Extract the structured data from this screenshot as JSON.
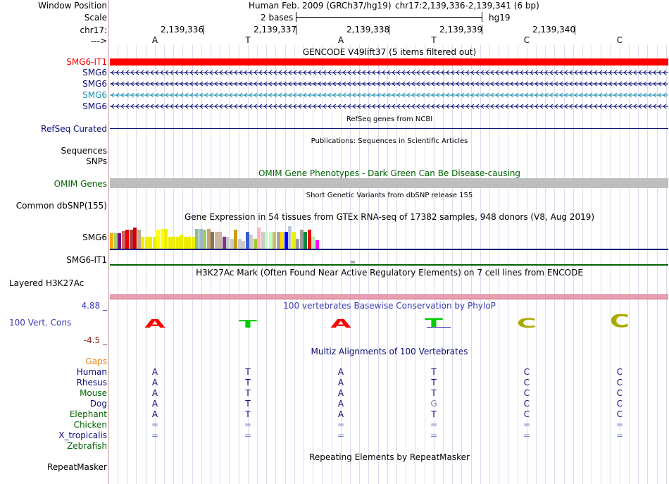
{
  "header": {
    "window_position_label": "Window Position",
    "scale_label": "Scale",
    "chrom_label": "chr17:",
    "strand_label": "--->",
    "assembly": "Human Feb. 2009 (GRCh37/hg19)",
    "position": "chr17:2,139,336-2,139,341 (6 bp)",
    "scale_bases": "2 bases",
    "scale_db": "hg19",
    "ruler_positions": [
      "2,139,336",
      "2,139,337",
      "2,139,338",
      "2,139,339",
      "2,139,340"
    ],
    "bases": [
      "A",
      "T",
      "A",
      "T",
      "C",
      "C"
    ]
  },
  "tracks": {
    "gencode": {
      "title": "GENCODE V49lift37 (5 items filtered out)",
      "items": [
        {
          "name": "SMG6-IT1",
          "color": "#ff0000",
          "type": "bar"
        },
        {
          "name": "SMG6",
          "color": "#0c0c78",
          "type": "arrow"
        },
        {
          "name": "SMG6",
          "color": "#0c0c78",
          "type": "arrow"
        },
        {
          "name": "SMG6",
          "color": "#1a8fb0",
          "type": "arrow"
        },
        {
          "name": "SMG6",
          "color": "#0c0c78",
          "type": "arrow"
        }
      ]
    },
    "refseq": {
      "title": "RefSeq genes from NCBI",
      "label": "RefSeq Curated",
      "color": "#0c0c78"
    },
    "publications": {
      "title": "Publications: Sequences in Scientific Articles",
      "label": "Sequences"
    },
    "snps_label": "SNPs",
    "omim": {
      "title": "OMIM Gene Phenotypes - Dark Green Can Be Disease-causing",
      "label": "OMIM Genes",
      "color": "#006400"
    },
    "dbsnp": {
      "title": "Short Genetic Variants from dbSNP release 155",
      "label": "Common dbSNP(155)"
    },
    "gtex": {
      "title": "Gene Expression in 54 tissues from GTEx RNA-seq of 17382 samples, 948 donors (V8, Aug 2019)",
      "gene1": "SMG6",
      "gene2": "SMG6-IT1",
      "colors": [
        "#ffaa00",
        "#a4d36c",
        "#800080",
        "#cc6666",
        "#e60000",
        "#b1373b",
        "#cc0000",
        "#c1a78b",
        "#eeee00",
        "#eeee00",
        "#eeee00",
        "#eeee00",
        "#ffff00",
        "#ffff00",
        "#eeee00",
        "#eeee00",
        "#eeee00",
        "#eeee00",
        "#eeee00",
        "#eeee00",
        "#eeee00",
        "#eeee00",
        "#8fbc8f",
        "#9fb6cd",
        "#a2cd5a",
        "#c1a77b",
        "#8b7355",
        "#cdb79e",
        "#cdb79e",
        "#7a378b",
        "#ccc",
        "#ccc",
        "#cd9b1d",
        "#ccc",
        "#ccc",
        "#3a5fcd",
        "#ccc",
        "#9acd32",
        "#ffb6c1",
        "#ccc",
        "#c1ffc1",
        "#c1ffc1",
        "#cdbe70",
        "#a6a6a6",
        "#ffd700",
        "#0000ff",
        "#bbc7de",
        "#eeee00",
        "#9c9c9c",
        "#9c9c9c",
        "#008b45",
        "#ee0000",
        "#b4eeb4",
        "#ff00ff"
      ],
      "levels": [
        0.62,
        0.62,
        0.62,
        0.7,
        0.74,
        0.74,
        0.82,
        0.74,
        0.48,
        0.48,
        0.48,
        0.48,
        0.74,
        0.78,
        0.78,
        0.48,
        0.48,
        0.48,
        0.55,
        0.48,
        0.48,
        0.48,
        0.78,
        0.78,
        0.74,
        0.78,
        0.67,
        0.67,
        0.67,
        0.48,
        0.48,
        0.4,
        0.74,
        0.4,
        0.3,
        0.67,
        0.55,
        0.4,
        0.82,
        0.67,
        0.67,
        0.67,
        0.67,
        0.67,
        0.67,
        0.67,
        0.88,
        0.67,
        0.4,
        0.74,
        0.67,
        0.74,
        0.48,
        0.33
      ]
    },
    "h3k27ac": {
      "title": "H3K27Ac Mark (Often Found Near Active Regulatory Elements) on 7 cell lines from ENCODE",
      "label": "Layered H3K27Ac"
    },
    "phylop": {
      "title": "100 vertebrates Basewise Conservation by PhyloP",
      "label": "100 Vert. Cons",
      "max": "4.88 _",
      "min": "-4.5 _",
      "colors": [
        "#ff0000",
        "#00cc00",
        "#ff0000",
        "#00cc00",
        "#aaaa00",
        "#aaaa00"
      ],
      "heights": [
        0.5,
        0.45,
        0.5,
        0.6,
        0.6,
        0.9
      ]
    },
    "multiz": {
      "title": "Multiz Alignments of 100 Vertebrates",
      "gaps_label": "Gaps",
      "species": [
        {
          "name": "Human",
          "color": "#0c0c78",
          "seq": [
            "A",
            "T",
            "A",
            "T",
            "C",
            "C"
          ]
        },
        {
          "name": "Rhesus",
          "color": "#0c0c78",
          "seq": [
            "A",
            "T",
            "A",
            "T",
            "C",
            "C"
          ]
        },
        {
          "name": "Mouse",
          "color": "#006400",
          "seq": [
            "A",
            "T",
            "A",
            "T",
            "C",
            "C"
          ]
        },
        {
          "name": "Dog",
          "color": "#0c0c78",
          "seq": [
            "A",
            "T",
            "A",
            "G",
            "C",
            "C"
          ]
        },
        {
          "name": "Elephant",
          "color": "#006400",
          "seq": [
            "A",
            "T",
            "A",
            "T",
            "C",
            "C"
          ]
        },
        {
          "name": "Chicken",
          "color": "#006400",
          "seq": [
            "=",
            "=",
            "=",
            "=",
            "=",
            "="
          ]
        },
        {
          "name": "X_tropicalis",
          "color": "#0c0c78",
          "seq": [
            "=",
            "=",
            "=",
            "=",
            "=",
            "="
          ]
        },
        {
          "name": "Zebrafish",
          "color": "#006400",
          "seq": [
            "",
            "",
            "",
            "",
            "",
            ""
          ]
        }
      ]
    },
    "repeatmasker": {
      "title": "Repeating Elements by RepeatMasker",
      "label": "RepeatMasker"
    }
  }
}
